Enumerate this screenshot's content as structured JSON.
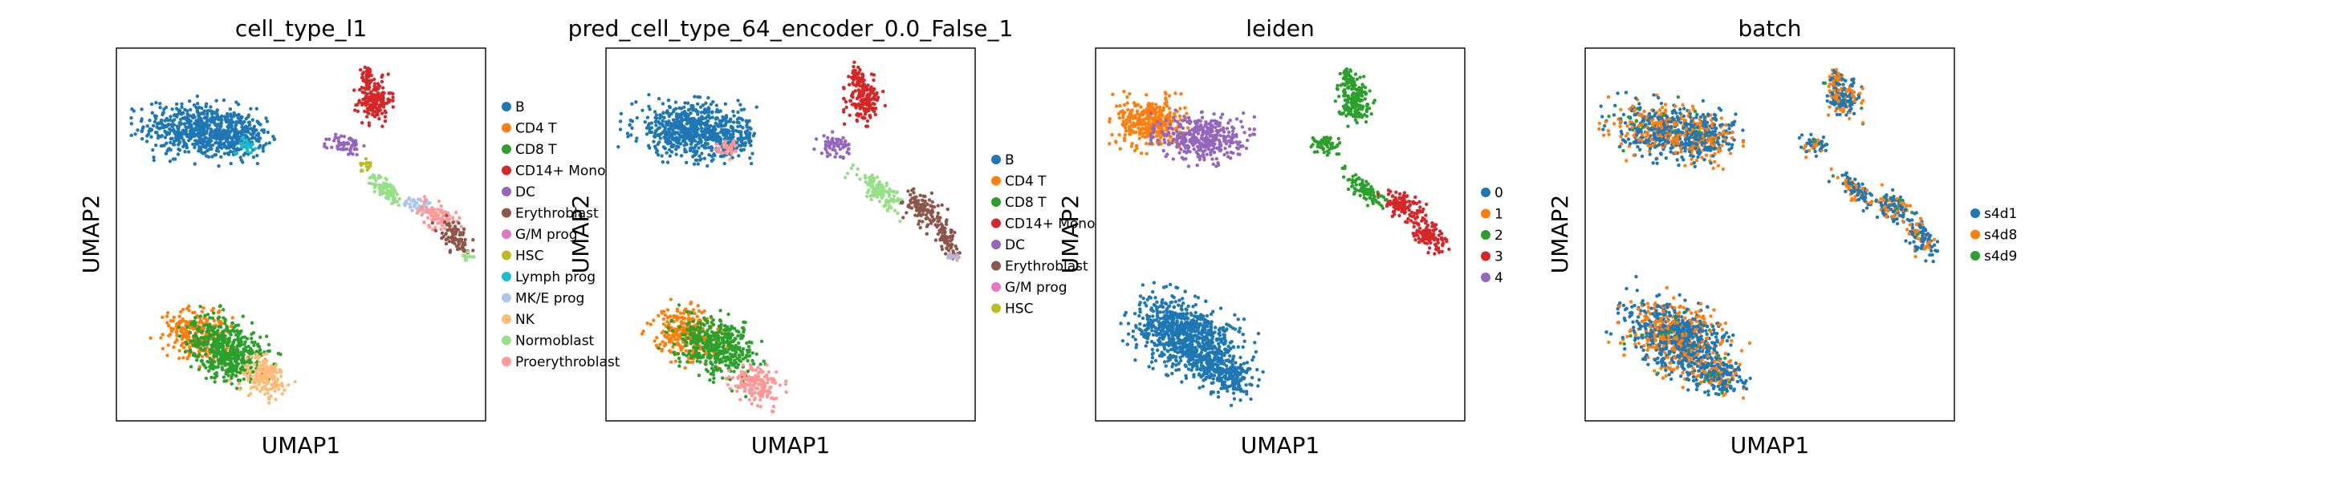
{
  "chart_data": [
    {
      "type": "scatter",
      "title": "cell_type_l1",
      "xlabel": "UMAP1",
      "ylabel": "UMAP2",
      "legend": "right",
      "series": [
        {
          "name": "B",
          "color": "#1f77b4"
        },
        {
          "name": "CD4 T",
          "color": "#ff7f0e"
        },
        {
          "name": "CD8 T",
          "color": "#2ca02c"
        },
        {
          "name": "CD14+ Mono",
          "color": "#d62728"
        },
        {
          "name": "DC",
          "color": "#9467bd"
        },
        {
          "name": "Erythroblast",
          "color": "#8c564b"
        },
        {
          "name": "G/M prog",
          "color": "#e377c2"
        },
        {
          "name": "HSC",
          "color": "#bcbd22"
        },
        {
          "name": "Lymph prog",
          "color": "#17becf"
        },
        {
          "name": "MK/E prog",
          "color": "#aec7e8"
        },
        {
          "name": "NK",
          "color": "#ffbb78"
        },
        {
          "name": "Normoblast",
          "color": "#98df8a"
        },
        {
          "name": "Proerythroblast",
          "color": "#ff9896"
        }
      ],
      "clusters": [
        {
          "c": 0,
          "x": 0.22,
          "y": 0.78,
          "rx": 0.13,
          "ry": 0.065,
          "n": 550,
          "rot": -5
        },
        {
          "c": 0,
          "x": 0.33,
          "y": 0.76,
          "rx": 0.07,
          "ry": 0.05,
          "n": 180,
          "rot": 0
        },
        {
          "c": 8,
          "x": 0.35,
          "y": 0.74,
          "rx": 0.025,
          "ry": 0.02,
          "n": 30,
          "rot": 0
        },
        {
          "c": 3,
          "x": 0.7,
          "y": 0.86,
          "rx": 0.04,
          "ry": 0.05,
          "n": 160,
          "rot": 0
        },
        {
          "c": 3,
          "x": 0.68,
          "y": 0.92,
          "rx": 0.015,
          "ry": 0.03,
          "n": 40,
          "rot": 0
        },
        {
          "c": 4,
          "x": 0.62,
          "y": 0.74,
          "rx": 0.04,
          "ry": 0.025,
          "n": 60,
          "rot": 0
        },
        {
          "c": 11,
          "x": 0.73,
          "y": 0.62,
          "rx": 0.06,
          "ry": 0.02,
          "n": 90,
          "rot": -40
        },
        {
          "c": 9,
          "x": 0.82,
          "y": 0.58,
          "rx": 0.04,
          "ry": 0.02,
          "n": 50,
          "rot": -20
        },
        {
          "c": 7,
          "x": 0.68,
          "y": 0.69,
          "rx": 0.015,
          "ry": 0.015,
          "n": 15,
          "rot": 0
        },
        {
          "c": 12,
          "x": 0.87,
          "y": 0.55,
          "rx": 0.05,
          "ry": 0.03,
          "n": 80,
          "rot": -30
        },
        {
          "c": 5,
          "x": 0.92,
          "y": 0.49,
          "rx": 0.05,
          "ry": 0.025,
          "n": 80,
          "rot": -55
        },
        {
          "c": 11,
          "x": 0.95,
          "y": 0.44,
          "rx": 0.015,
          "ry": 0.01,
          "n": 12,
          "rot": 0
        },
        {
          "c": 1,
          "x": 0.22,
          "y": 0.23,
          "rx": 0.08,
          "ry": 0.06,
          "n": 280,
          "rot": -25
        },
        {
          "c": 2,
          "x": 0.3,
          "y": 0.2,
          "rx": 0.1,
          "ry": 0.065,
          "n": 420,
          "rot": -25
        },
        {
          "c": 10,
          "x": 0.4,
          "y": 0.12,
          "rx": 0.06,
          "ry": 0.045,
          "n": 180,
          "rot": -20
        },
        {
          "c": 2,
          "x": 0.3,
          "y": 0.15,
          "rx": 0.05,
          "ry": 0.04,
          "n": 80,
          "rot": 0
        }
      ]
    },
    {
      "type": "scatter",
      "title": "pred_cell_type_64_encoder_0.0_False_1",
      "xlabel": "UMAP1",
      "ylabel": "UMAP2",
      "legend": "right",
      "series": [
        {
          "name": "B",
          "color": "#1f77b4"
        },
        {
          "name": "CD4 T",
          "color": "#ff7f0e"
        },
        {
          "name": "CD8 T",
          "color": "#2ca02c"
        },
        {
          "name": "CD14+ Mono",
          "color": "#d62728"
        },
        {
          "name": "DC",
          "color": "#9467bd"
        },
        {
          "name": "Erythroblast",
          "color": "#8c564b"
        },
        {
          "name": "G/M prog",
          "color": "#e377c2"
        },
        {
          "name": "HSC",
          "color": "#bcbd22"
        }
      ],
      "extra_colors": [
        "#98df8a",
        "#ff9896",
        "#c5b0d5"
      ],
      "clusters": [
        {
          "c": 0,
          "x": 0.22,
          "y": 0.78,
          "rx": 0.13,
          "ry": 0.065,
          "n": 550,
          "rot": -5
        },
        {
          "c": 0,
          "x": 0.33,
          "y": 0.76,
          "rx": 0.07,
          "ry": 0.05,
          "n": 180,
          "rot": 0
        },
        {
          "c": 9,
          "x": 0.33,
          "y": 0.73,
          "rx": 0.03,
          "ry": 0.02,
          "n": 40,
          "rot": 0
        },
        {
          "c": 3,
          "x": 0.7,
          "y": 0.86,
          "rx": 0.04,
          "ry": 0.05,
          "n": 160,
          "rot": 0
        },
        {
          "c": 3,
          "x": 0.68,
          "y": 0.92,
          "rx": 0.015,
          "ry": 0.03,
          "n": 40,
          "rot": 0
        },
        {
          "c": 4,
          "x": 0.62,
          "y": 0.74,
          "rx": 0.04,
          "ry": 0.025,
          "n": 60,
          "rot": 0
        },
        {
          "c": 8,
          "x": 0.74,
          "y": 0.62,
          "rx": 0.07,
          "ry": 0.025,
          "n": 120,
          "rot": -40
        },
        {
          "c": 5,
          "x": 0.86,
          "y": 0.57,
          "rx": 0.05,
          "ry": 0.035,
          "n": 100,
          "rot": -30
        },
        {
          "c": 5,
          "x": 0.92,
          "y": 0.49,
          "rx": 0.05,
          "ry": 0.025,
          "n": 80,
          "rot": -55
        },
        {
          "c": 10,
          "x": 0.94,
          "y": 0.44,
          "rx": 0.015,
          "ry": 0.01,
          "n": 14,
          "rot": 0
        },
        {
          "c": 1,
          "x": 0.22,
          "y": 0.23,
          "rx": 0.08,
          "ry": 0.06,
          "n": 280,
          "rot": -25
        },
        {
          "c": 2,
          "x": 0.3,
          "y": 0.2,
          "rx": 0.1,
          "ry": 0.065,
          "n": 420,
          "rot": -25
        },
        {
          "c": 9,
          "x": 0.41,
          "y": 0.1,
          "rx": 0.06,
          "ry": 0.04,
          "n": 160,
          "rot": -20
        }
      ]
    },
    {
      "type": "scatter",
      "title": "leiden",
      "xlabel": "UMAP1",
      "ylabel": "UMAP2",
      "legend": "right",
      "series": [
        {
          "name": "0",
          "color": "#1f77b4"
        },
        {
          "name": "1",
          "color": "#ff7f0e"
        },
        {
          "name": "2",
          "color": "#2ca02c"
        },
        {
          "name": "3",
          "color": "#d62728"
        },
        {
          "name": "4",
          "color": "#9467bd"
        }
      ],
      "clusters": [
        {
          "c": 1,
          "x": 0.15,
          "y": 0.8,
          "rx": 0.08,
          "ry": 0.06,
          "n": 350,
          "rot": -5
        },
        {
          "c": 4,
          "x": 0.29,
          "y": 0.76,
          "rx": 0.1,
          "ry": 0.055,
          "n": 380,
          "rot": 0
        },
        {
          "c": 2,
          "x": 0.7,
          "y": 0.86,
          "rx": 0.04,
          "ry": 0.05,
          "n": 160,
          "rot": 0
        },
        {
          "c": 2,
          "x": 0.68,
          "y": 0.92,
          "rx": 0.015,
          "ry": 0.03,
          "n": 40,
          "rot": 0
        },
        {
          "c": 2,
          "x": 0.62,
          "y": 0.74,
          "rx": 0.04,
          "ry": 0.025,
          "n": 60,
          "rot": 0
        },
        {
          "c": 2,
          "x": 0.73,
          "y": 0.62,
          "rx": 0.06,
          "ry": 0.02,
          "n": 90,
          "rot": -40
        },
        {
          "c": 3,
          "x": 0.83,
          "y": 0.58,
          "rx": 0.05,
          "ry": 0.03,
          "n": 100,
          "rot": -25
        },
        {
          "c": 3,
          "x": 0.9,
          "y": 0.5,
          "rx": 0.06,
          "ry": 0.03,
          "n": 120,
          "rot": -50
        },
        {
          "c": 0,
          "x": 0.25,
          "y": 0.22,
          "rx": 0.13,
          "ry": 0.08,
          "n": 900,
          "rot": -25
        },
        {
          "c": 0,
          "x": 0.36,
          "y": 0.12,
          "rx": 0.06,
          "ry": 0.04,
          "n": 180,
          "rot": -20
        }
      ]
    },
    {
      "type": "scatter",
      "title": "batch",
      "xlabel": "UMAP1",
      "ylabel": "UMAP2",
      "legend": "right",
      "series": [
        {
          "name": "s4d1",
          "color": "#1f77b4"
        },
        {
          "name": "s4d8",
          "color": "#ff7f0e"
        },
        {
          "name": "s4d9",
          "color": "#2ca02c"
        }
      ],
      "mixed": true,
      "clusters": [
        {
          "c": 0,
          "x": 0.22,
          "y": 0.78,
          "rx": 0.13,
          "ry": 0.065,
          "n": 600,
          "rot": -5
        },
        {
          "c": 0,
          "x": 0.33,
          "y": 0.76,
          "rx": 0.07,
          "ry": 0.05,
          "n": 200,
          "rot": 0
        },
        {
          "c": 0,
          "x": 0.7,
          "y": 0.86,
          "rx": 0.04,
          "ry": 0.05,
          "n": 160,
          "rot": 0
        },
        {
          "c": 0,
          "x": 0.68,
          "y": 0.92,
          "rx": 0.015,
          "ry": 0.03,
          "n": 40,
          "rot": 0
        },
        {
          "c": 0,
          "x": 0.62,
          "y": 0.74,
          "rx": 0.04,
          "ry": 0.025,
          "n": 60,
          "rot": 0
        },
        {
          "c": 0,
          "x": 0.73,
          "y": 0.62,
          "rx": 0.06,
          "ry": 0.02,
          "n": 90,
          "rot": -40
        },
        {
          "c": 0,
          "x": 0.84,
          "y": 0.57,
          "rx": 0.05,
          "ry": 0.03,
          "n": 110,
          "rot": -25
        },
        {
          "c": 0,
          "x": 0.91,
          "y": 0.49,
          "rx": 0.05,
          "ry": 0.03,
          "n": 100,
          "rot": -55
        },
        {
          "c": 0,
          "x": 0.25,
          "y": 0.22,
          "rx": 0.13,
          "ry": 0.08,
          "n": 900,
          "rot": -25
        },
        {
          "c": 0,
          "x": 0.36,
          "y": 0.12,
          "rx": 0.06,
          "ry": 0.04,
          "n": 180,
          "rot": -20
        }
      ]
    }
  ]
}
